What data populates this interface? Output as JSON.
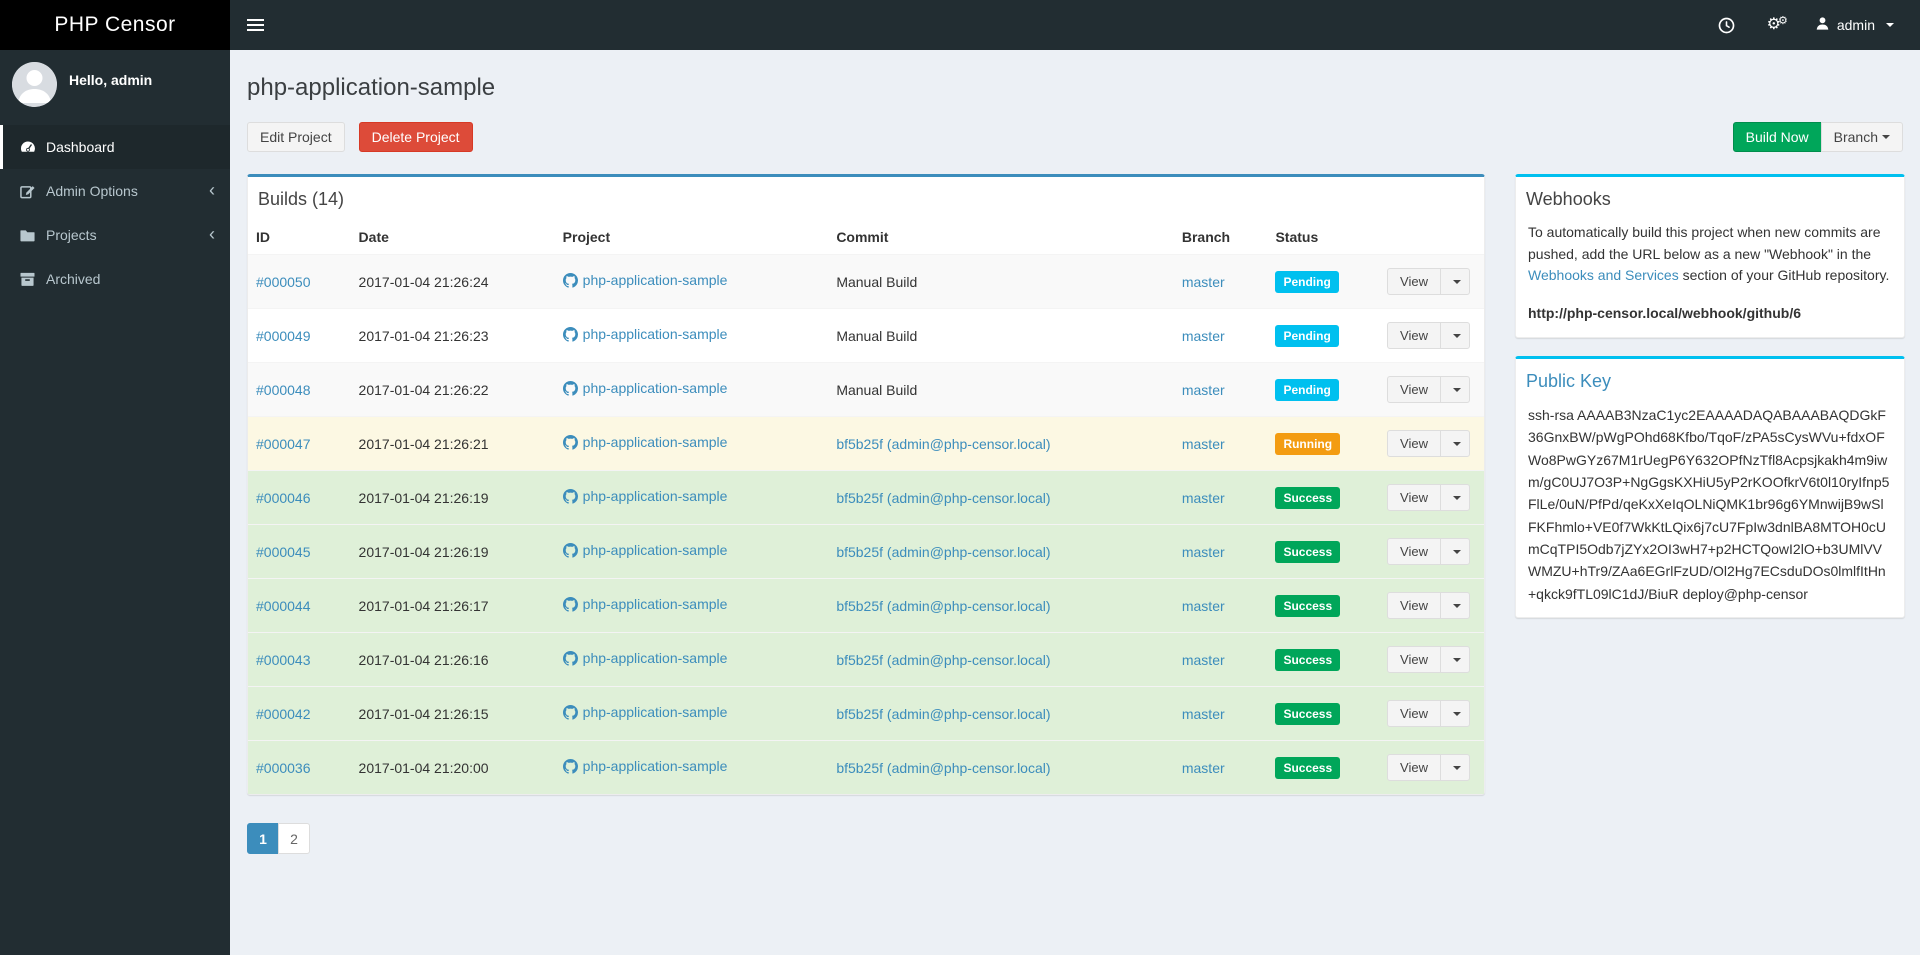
{
  "brand": "PHP Censor",
  "navbar": {
    "user_label": "admin"
  },
  "sidebar": {
    "greeting": "Hello, admin",
    "items": [
      {
        "label": "Dashboard",
        "icon": "dashboard-icon",
        "active": true,
        "chevron": false
      },
      {
        "label": "Admin Options",
        "icon": "edit-icon",
        "active": false,
        "chevron": true
      },
      {
        "label": "Projects",
        "icon": "folder-icon",
        "active": false,
        "chevron": true
      },
      {
        "label": "Archived",
        "icon": "archive-icon",
        "active": false,
        "chevron": false
      }
    ]
  },
  "page": {
    "title": "php-application-sample",
    "edit_label": "Edit Project",
    "delete_label": "Delete Project",
    "build_label": "Build Now",
    "branch_label": "Branch"
  },
  "builds": {
    "title": "Builds (14)",
    "columns": {
      "id": "ID",
      "date": "Date",
      "project": "Project",
      "commit": "Commit",
      "branch": "Branch",
      "status": "Status"
    },
    "view_label": "View",
    "rows": [
      {
        "id": "#000050",
        "date": "2017-01-04 21:26:24",
        "project": "php-application-sample",
        "commit": "Manual Build",
        "commit_is_link": false,
        "branch": "master",
        "status": "Pending"
      },
      {
        "id": "#000049",
        "date": "2017-01-04 21:26:23",
        "project": "php-application-sample",
        "commit": "Manual Build",
        "commit_is_link": false,
        "branch": "master",
        "status": "Pending"
      },
      {
        "id": "#000048",
        "date": "2017-01-04 21:26:22",
        "project": "php-application-sample",
        "commit": "Manual Build",
        "commit_is_link": false,
        "branch": "master",
        "status": "Pending"
      },
      {
        "id": "#000047",
        "date": "2017-01-04 21:26:21",
        "project": "php-application-sample",
        "commit": "bf5b25f (admin@php-censor.local)",
        "commit_is_link": true,
        "branch": "master",
        "status": "Running"
      },
      {
        "id": "#000046",
        "date": "2017-01-04 21:26:19",
        "project": "php-application-sample",
        "commit": "bf5b25f (admin@php-censor.local)",
        "commit_is_link": true,
        "branch": "master",
        "status": "Success"
      },
      {
        "id": "#000045",
        "date": "2017-01-04 21:26:19",
        "project": "php-application-sample",
        "commit": "bf5b25f (admin@php-censor.local)",
        "commit_is_link": true,
        "branch": "master",
        "status": "Success"
      },
      {
        "id": "#000044",
        "date": "2017-01-04 21:26:17",
        "project": "php-application-sample",
        "commit": "bf5b25f (admin@php-censor.local)",
        "commit_is_link": true,
        "branch": "master",
        "status": "Success"
      },
      {
        "id": "#000043",
        "date": "2017-01-04 21:26:16",
        "project": "php-application-sample",
        "commit": "bf5b25f (admin@php-censor.local)",
        "commit_is_link": true,
        "branch": "master",
        "status": "Success"
      },
      {
        "id": "#000042",
        "date": "2017-01-04 21:26:15",
        "project": "php-application-sample",
        "commit": "bf5b25f (admin@php-censor.local)",
        "commit_is_link": true,
        "branch": "master",
        "status": "Success"
      },
      {
        "id": "#000036",
        "date": "2017-01-04 21:20:00",
        "project": "php-application-sample",
        "commit": "bf5b25f (admin@php-censor.local)",
        "commit_is_link": true,
        "branch": "master",
        "status": "Success"
      }
    ],
    "pagination": [
      "1",
      "2"
    ],
    "active_page": "1"
  },
  "webhooks": {
    "title": "Webhooks",
    "text_before": "To automatically build this project when new commits are pushed, add the URL below as a new \"Webhook\" in the ",
    "link_label": "Webhooks and Services",
    "text_after": " section of your GitHub repository.",
    "url": "http://php-censor.local/webhook/github/6"
  },
  "public_key": {
    "title": "Public Key",
    "key": "ssh-rsa AAAAB3NzaC1yc2EAAAADAQABAAABAQDGkF36GnxBW/pWgPOhd68Kfbo/TqoF/zPA5sCysWVu+fdxOFWo8PwGYz67M1rUegP6Y632OPfNzTfl8Acpsjkakh4m9iwm/gC0UJ7O3P+NgGgsKXHiU5yP2rKOOfkrV6t0l10ryIfnp5FlLe/0uN/PfPd/qeKxXeIqOLNiQMK1br96g6YMnwijB9wSlFKFhmlo+VE0f7WkKtLQix6j7cU7FpIw3dnlBA8MTOH0cUmCqTPI5Odb7jZYx2OI3wH7+p2HCTQowI2lO+b3UMlVVWMZU+hTr9/ZAa6EGrlFzUD/Ol2Hg7ECsduDOs0lmlfItHn+qkck9fTL09lC1dJ/BiuR deploy@php-censor"
  },
  "colors": {
    "accent_blue": "#3c8dbc",
    "info_cyan": "#00c0ef",
    "success_green": "#00a65a",
    "warning_orange": "#f39c12",
    "danger_red": "#dd4b39",
    "status": {
      "Pending": "#00c0ef",
      "Running": "#f39c12",
      "Success": "#00a65a"
    }
  }
}
